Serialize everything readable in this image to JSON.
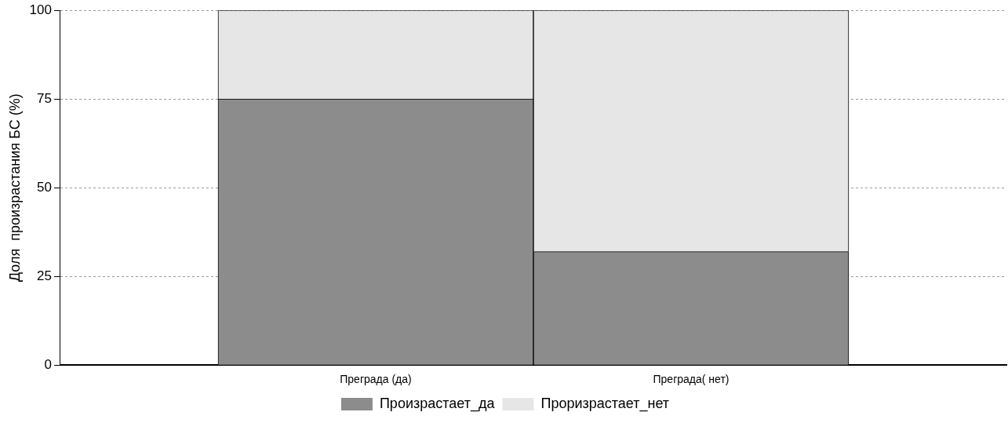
{
  "chart_data": {
    "type": "bar",
    "stacked": true,
    "ylabel": "Доля  произрастания БС (%)",
    "categories": [
      "Преграда (да)",
      "Преграда( нет)"
    ],
    "series": [
      {
        "name": "Произрастает_да",
        "color": "#8c8c8c",
        "values": [
          75,
          32
        ]
      },
      {
        "name": "Проризрастает_нет",
        "color": "#e6e6e6",
        "values": [
          25,
          68
        ]
      }
    ],
    "ylim": [
      0,
      100
    ],
    "yticks": [
      0,
      25,
      50,
      75,
      100
    ],
    "grid": "y",
    "legend": "bottom"
  }
}
